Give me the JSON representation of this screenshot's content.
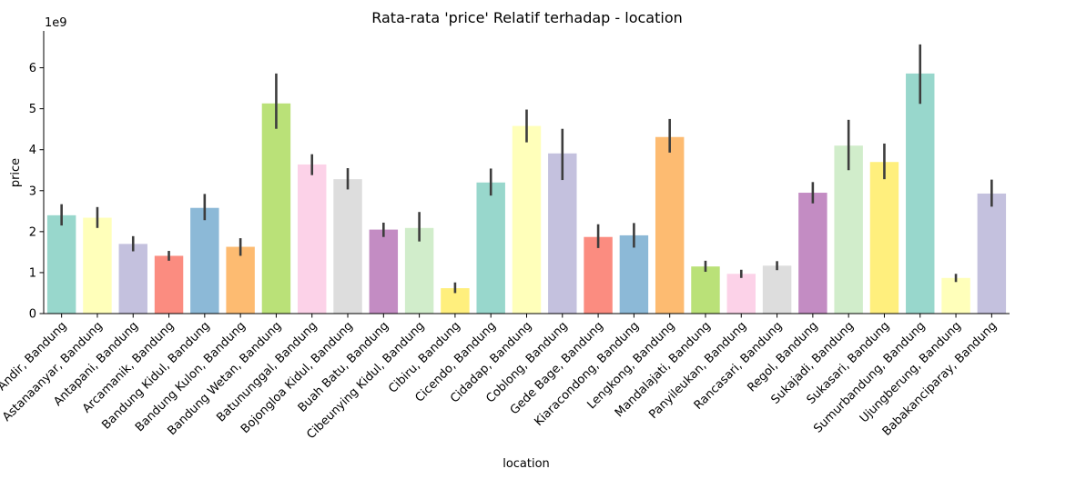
{
  "chart_data": {
    "type": "bar",
    "title": "Rata-rata 'price' Relatif terhadap - location",
    "xlabel": "location",
    "ylabel": "price",
    "y_scale_label": "1e9",
    "ylim": [
      0,
      6.9
    ],
    "yticks": [
      "0",
      "1",
      "2",
      "3",
      "4",
      "5",
      "6"
    ],
    "grid": false,
    "categories": [
      "Andir, Bandung",
      "Astanaanyar, Bandung",
      "Antapani, Bandung",
      "Arcamanik, Bandung",
      "Bandung Kidul, Bandung",
      "Bandung Kulon, Bandung",
      "Bandung Wetan, Bandung",
      "Batununggal, Bandung",
      "Bojongloa Kidul, Bandung",
      "Buah Batu, Bandung",
      "Cibeunying Kidul, Bandung",
      "Cibiru, Bandung",
      "Cicendo, Bandung",
      "Cidadap, Bandung",
      "Coblong, Bandung",
      "Gede Bage, Bandung",
      "Kiaracondong, Bandung",
      "Lengkong, Bandung",
      "Mandalajati, Bandung",
      "Panyileukan, Bandung",
      "Rancasari, Bandung",
      "Regol, Bandung",
      "Sukajadi, Bandung",
      "Sukasari, Bandung",
      "Sumurbandung, Bandung",
      "Ujungberung, Bandung",
      "Babakanciparay, Bandung"
    ],
    "values": [
      2.4,
      2.34,
      1.7,
      1.41,
      2.58,
      1.63,
      5.13,
      3.64,
      3.28,
      2.05,
      2.09,
      0.62,
      3.2,
      4.58,
      3.91,
      1.87,
      1.91,
      4.31,
      1.15,
      0.97,
      1.17,
      2.95,
      4.1,
      3.7,
      5.86,
      0.87,
      2.93
    ],
    "ci_low": [
      2.15,
      2.09,
      1.52,
      1.29,
      2.28,
      1.41,
      4.51,
      3.38,
      3.03,
      1.87,
      1.76,
      0.5,
      2.88,
      4.18,
      3.26,
      1.6,
      1.61,
      3.93,
      1.02,
      0.87,
      1.06,
      2.69,
      3.5,
      3.28,
      5.12,
      0.77,
      2.61
    ],
    "ci_high": [
      2.67,
      2.6,
      1.89,
      1.53,
      2.92,
      1.84,
      5.86,
      3.89,
      3.55,
      2.22,
      2.48,
      0.76,
      3.54,
      4.98,
      4.51,
      2.18,
      2.21,
      4.75,
      1.29,
      1.07,
      1.28,
      3.21,
      4.73,
      4.15,
      6.57,
      0.97,
      3.27
    ],
    "colors": [
      "#8dd3c7",
      "#ffffb3",
      "#bebada",
      "#fb8072",
      "#80b1d3",
      "#fdb462",
      "#b3de69",
      "#fccde5",
      "#d9d9d9",
      "#bc80bd",
      "#ccebc5",
      "#ffed6f"
    ],
    "color_alpha": 0.9
  }
}
